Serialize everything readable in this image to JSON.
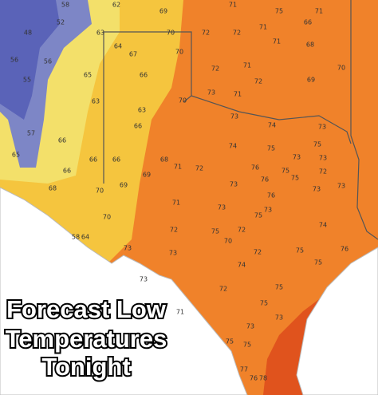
{
  "title": {
    "lines": [
      "Forecast Low",
      "Temperatures",
      "Tonight"
    ]
  },
  "temperature_labels": [
    58,
    62,
    69,
    71,
    75,
    71,
    48,
    52,
    63,
    70,
    72,
    72,
    71,
    66,
    64,
    67,
    70,
    71,
    68,
    56,
    56,
    65,
    66,
    72,
    71,
    70,
    55,
    72,
    69,
    63,
    70,
    73,
    71,
    63,
    66,
    73,
    74,
    73,
    57,
    66,
    74,
    75,
    75,
    65,
    66,
    66,
    68,
    73,
    73,
    66,
    69,
    71,
    72,
    76,
    75,
    72,
    68,
    70,
    69,
    73,
    76,
    75,
    71,
    73,
    76,
    73,
    73,
    75,
    73,
    70,
    72,
    58,
    64,
    75,
    72,
    74,
    73,
    70,
    75,
    73,
    72,
    76,
    74,
    75,
    73,
    72,
    75,
    71,
    75,
    73,
    73,
    75,
    75,
    77,
    76,
    78
  ]
}
